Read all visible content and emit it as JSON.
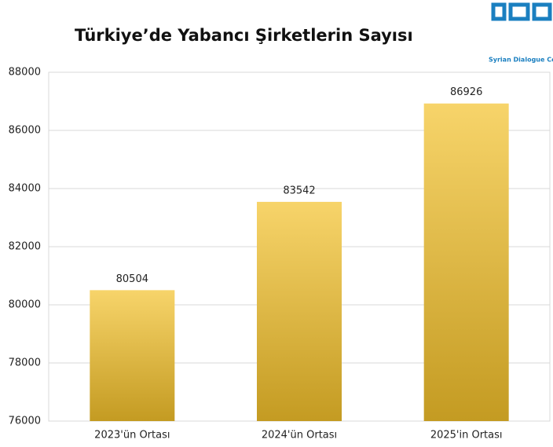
{
  "chart_data": {
    "type": "bar",
    "title": "Türkiye’de Yabancı Şirketlerin Sayısı",
    "logo": "Syrian Dialogue Center",
    "categories": [
      "2023'ün Ortası",
      "2024'ün Ortası",
      "2025'in Ortası"
    ],
    "values": [
      80504,
      83542,
      86926
    ],
    "gradient": [
      "#f7d46a",
      "#c49b22"
    ],
    "ylim": [
      76000,
      88000
    ],
    "yticks": [
      76000,
      78000,
      80000,
      82000,
      84000,
      86000,
      88000
    ],
    "grid": true
  }
}
